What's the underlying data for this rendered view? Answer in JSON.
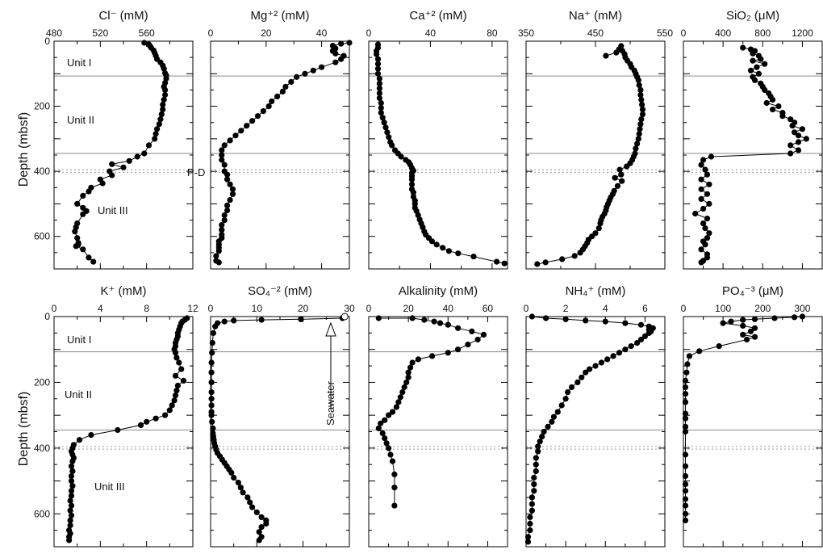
{
  "ylabel": "Depth (mbsf)",
  "depth_ylim": [
    0,
    700
  ],
  "depth_ticks": [
    0,
    200,
    400,
    600
  ],
  "boundaries": {
    "solid": [
      107,
      345
    ],
    "dotted": [
      395,
      403
    ]
  },
  "annotations": {
    "unit_i": "Unit I",
    "unit_ii": "Unit II",
    "unit_iii": "Unit III",
    "pd": "P-D",
    "seawater": "Seawater"
  },
  "chart_data": [
    {
      "id": "cl",
      "type": "scatter",
      "title": "Cl⁻ (mM)",
      "xlim": [
        480,
        600
      ],
      "xticks": [
        480,
        520,
        560
      ],
      "ylim": [
        0,
        700
      ],
      "x": [
        558,
        562,
        563,
        564,
        566,
        567,
        568,
        569,
        572,
        574,
        575,
        576,
        577,
        577,
        576,
        575,
        576,
        576,
        575,
        574,
        574,
        573,
        572,
        571,
        569,
        568,
        567,
        562,
        558,
        552,
        545,
        530,
        540,
        528,
        530,
        520,
        522,
        512,
        510,
        505,
        500,
        505,
        508,
        505,
        500,
        499,
        498,
        500,
        501,
        501,
        499,
        505,
        510,
        514
      ],
      "y": [
        5,
        10,
        15,
        20,
        28,
        36,
        45,
        55,
        65,
        75,
        85,
        98,
        105,
        115,
        128,
        140,
        150,
        165,
        180,
        195,
        210,
        225,
        240,
        255,
        270,
        285,
        300,
        320,
        345,
        355,
        368,
        378,
        388,
        400,
        412,
        425,
        437,
        450,
        462,
        475,
        500,
        512,
        522,
        532,
        560,
        572,
        585,
        605,
        620,
        625,
        630,
        640,
        665,
        678
      ]
    },
    {
      "id": "mg",
      "type": "scatter",
      "title": "Mg⁺² (mM)",
      "xlim": [
        0,
        50
      ],
      "xticks": [
        0,
        20,
        40
      ],
      "ylim": [
        0,
        700
      ],
      "x": [
        50,
        47,
        44,
        45,
        44,
        45,
        48,
        47,
        45,
        40,
        37,
        34,
        31,
        29,
        27,
        26,
        24,
        22,
        21,
        19,
        17,
        15,
        13,
        11,
        9,
        7,
        5,
        4,
        4,
        4,
        5,
        5,
        6,
        6,
        7,
        8,
        8,
        7,
        6,
        6,
        5,
        5,
        4,
        4,
        4,
        4,
        3,
        3,
        3,
        3,
        2,
        2,
        3
      ],
      "y": [
        5,
        8,
        14,
        22,
        30,
        38,
        45,
        55,
        65,
        80,
        90,
        100,
        110,
        125,
        140,
        155,
        170,
        185,
        200,
        215,
        230,
        245,
        260,
        275,
        290,
        305,
        320,
        335,
        350,
        365,
        380,
        400,
        410,
        425,
        440,
        455,
        470,
        488,
        505,
        520,
        535,
        550,
        565,
        580,
        595,
        605,
        615,
        625,
        635,
        645,
        660,
        675,
        680
      ]
    },
    {
      "id": "ca",
      "type": "scatter",
      "title": "Ca⁺² (mM)",
      "xlim": [
        0,
        90
      ],
      "xticks": [
        0,
        40,
        80
      ],
      "ylim": [
        0,
        700
      ],
      "x": [
        6,
        6,
        5,
        5,
        6,
        6,
        6,
        6,
        7,
        7,
        7,
        7,
        7,
        8,
        8,
        8,
        9,
        10,
        11,
        12,
        13,
        14,
        15,
        17,
        19,
        21,
        24,
        26,
        27,
        28,
        29,
        28,
        28,
        28,
        28,
        28,
        29,
        29,
        30,
        30,
        30,
        31,
        32,
        33,
        34,
        35,
        36,
        37,
        39,
        41,
        44,
        48,
        52,
        58,
        68,
        83,
        88
      ],
      "y": [
        10,
        20,
        30,
        40,
        55,
        70,
        85,
        100,
        115,
        130,
        145,
        160,
        175,
        190,
        205,
        220,
        235,
        250,
        265,
        280,
        295,
        310,
        320,
        335,
        345,
        355,
        365,
        372,
        380,
        390,
        398,
        405,
        415,
        425,
        440,
        455,
        465,
        478,
        490,
        500,
        512,
        522,
        535,
        548,
        560,
        572,
        585,
        595,
        605,
        615,
        625,
        635,
        645,
        652,
        662,
        678,
        683
      ]
    },
    {
      "id": "na",
      "type": "scatter",
      "title": "Na⁺ (mM)",
      "xlim": [
        350,
        550
      ],
      "xticks": [
        350,
        450,
        550
      ],
      "ylim": [
        0,
        700
      ],
      "x": [
        465,
        480,
        484,
        487,
        489,
        492,
        493,
        496,
        500,
        502,
        506,
        508,
        510,
        512,
        513,
        515,
        515,
        516,
        517,
        518,
        518,
        516,
        515,
        514,
        513,
        512,
        510,
        508,
        507,
        505,
        503,
        500,
        495,
        485,
        487,
        478,
        488,
        482,
        477,
        475,
        472,
        470,
        468,
        466,
        465,
        463,
        460,
        458,
        457,
        455,
        450,
        445,
        440,
        438,
        435,
        432,
        428,
        420,
        402,
        378,
        366
      ],
      "y": [
        45,
        35,
        25,
        15,
        30,
        40,
        50,
        60,
        70,
        80,
        90,
        100,
        110,
        120,
        135,
        150,
        165,
        180,
        195,
        210,
        225,
        240,
        255,
        270,
        285,
        300,
        315,
        330,
        345,
        355,
        365,
        375,
        385,
        395,
        410,
        420,
        430,
        445,
        460,
        470,
        480,
        490,
        500,
        510,
        520,
        530,
        540,
        550,
        560,
        575,
        590,
        600,
        610,
        620,
        630,
        640,
        650,
        660,
        670,
        680,
        685
      ]
    },
    {
      "id": "sio2",
      "type": "scatter",
      "title": "SiO₂ (μM)",
      "xlim": [
        0,
        1400
      ],
      "xticks": [
        0,
        400,
        800,
        1200
      ],
      "ylim": [
        0,
        700
      ],
      "x": [
        600,
        680,
        720,
        700,
        760,
        780,
        700,
        820,
        740,
        680,
        760,
        700,
        720,
        780,
        800,
        820,
        860,
        880,
        900,
        840,
        960,
        900,
        1000,
        1000,
        1080,
        1120,
        1100,
        1200,
        1120,
        1160,
        1240,
        1160,
        1080,
        1160,
        1080,
        280,
        200,
        180,
        220,
        240,
        180,
        260,
        180,
        240,
        180,
        260,
        200,
        120,
        240,
        200,
        220,
        260,
        240,
        200,
        220,
        180,
        240,
        240,
        200,
        180
      ],
      "y": [
        20,
        25,
        30,
        38,
        45,
        55,
        60,
        70,
        80,
        90,
        100,
        110,
        120,
        130,
        140,
        150,
        160,
        170,
        180,
        190,
        200,
        210,
        220,
        230,
        240,
        250,
        260,
        270,
        280,
        290,
        300,
        310,
        320,
        335,
        345,
        355,
        365,
        380,
        395,
        410,
        425,
        440,
        455,
        470,
        485,
        500,
        515,
        530,
        545,
        560,
        575,
        590,
        605,
        615,
        625,
        640,
        655,
        665,
        675,
        680
      ]
    },
    {
      "id": "k",
      "type": "scatter",
      "title": "K⁺ (mM)",
      "xlim": [
        0,
        12
      ],
      "xticks": [
        0,
        4,
        8,
        12
      ],
      "ylim": [
        0,
        700
      ],
      "x": [
        11.5,
        11.3,
        11.1,
        11.0,
        10.9,
        10.8,
        10.7,
        10.7,
        10.6,
        10.5,
        10.5,
        10.4,
        10.5,
        10.6,
        10.8,
        11.0,
        10.5,
        11.2,
        10.7,
        10.6,
        10.5,
        10.4,
        10.2,
        10.0,
        9.6,
        8.8,
        8.0,
        7.5,
        5.5,
        3.2,
        2.2,
        1.7,
        1.6,
        1.5,
        1.6,
        1.7,
        1.6,
        1.5,
        1.6,
        1.5,
        1.5,
        1.6,
        1.5,
        1.5,
        1.4,
        1.5,
        1.4,
        1.5,
        1.4,
        1.4,
        1.3,
        1.4,
        1.3,
        1.3
      ],
      "y": [
        5,
        10,
        15,
        20,
        30,
        40,
        50,
        60,
        70,
        80,
        90,
        100,
        110,
        125,
        140,
        160,
        180,
        195,
        210,
        225,
        240,
        255,
        270,
        285,
        300,
        310,
        320,
        330,
        345,
        360,
        375,
        390,
        400,
        410,
        420,
        430,
        440,
        455,
        470,
        485,
        500,
        515,
        530,
        545,
        560,
        575,
        590,
        605,
        620,
        635,
        650,
        660,
        670,
        680
      ]
    },
    {
      "id": "so4",
      "type": "scatter",
      "title": "SO₄⁻² (mM)",
      "xlim": [
        0,
        30
      ],
      "xticks": [
        0,
        10,
        20,
        30
      ],
      "ylim": [
        0,
        700
      ],
      "x": [
        28.5,
        19.5,
        11,
        5,
        3,
        1.5,
        1,
        0.6,
        0.4,
        0.3,
        0.2,
        0.2,
        0.2,
        0.2,
        0.2,
        0.2,
        0.2,
        0.2,
        0.3,
        0.5,
        0.5,
        0.6,
        0.7,
        0.8,
        1.0,
        1.2,
        1.5,
        2,
        2.5,
        3,
        3.5,
        4,
        4.5,
        5,
        6,
        6.5,
        7,
        8,
        8.5,
        9,
        10,
        11,
        12,
        12,
        11,
        10.5,
        11,
        10.5
      ],
      "y": [
        5,
        8,
        10,
        12,
        15,
        20,
        30,
        50,
        80,
        110,
        140,
        170,
        200,
        230,
        250,
        270,
        290,
        300,
        320,
        340,
        355,
        365,
        375,
        385,
        395,
        405,
        415,
        425,
        435,
        445,
        455,
        465,
        475,
        490,
        505,
        520,
        535,
        550,
        565,
        580,
        595,
        610,
        620,
        630,
        640,
        655,
        670,
        680
      ]
    },
    {
      "id": "alk",
      "type": "scatter",
      "title": "Alkalinity (mM)",
      "xlim": [
        0,
        70
      ],
      "xticks": [
        0,
        20,
        40,
        60
      ],
      "ylim": [
        0,
        700
      ],
      "x": [
        5,
        22,
        28,
        33,
        36,
        40,
        45,
        52,
        58,
        55,
        50,
        45,
        40,
        32,
        25,
        22,
        21,
        20,
        20,
        19,
        18,
        17,
        16,
        15,
        14,
        12,
        10,
        8,
        6,
        5,
        7,
        8,
        9,
        10,
        11,
        12,
        13,
        13,
        13
      ],
      "y": [
        5,
        5,
        10,
        15,
        20,
        25,
        35,
        45,
        55,
        70,
        85,
        100,
        110,
        120,
        130,
        140,
        155,
        170,
        185,
        200,
        215,
        230,
        245,
        260,
        275,
        290,
        300,
        315,
        325,
        340,
        355,
        370,
        385,
        400,
        420,
        440,
        480,
        520,
        575
      ]
    },
    {
      "id": "nh4",
      "type": "scatter",
      "title": "NH₄⁺ (mM)",
      "xlim": [
        0,
        7
      ],
      "xticks": [
        0,
        2,
        4,
        6
      ],
      "ylim": [
        0,
        700
      ],
      "x": [
        0.3,
        1.0,
        2.0,
        3.0,
        4.0,
        5.0,
        5.8,
        6.2,
        6.4,
        6.2,
        6.3,
        6.2,
        6.0,
        5.8,
        5.6,
        5.3,
        5.0,
        4.7,
        4.4,
        4.1,
        3.8,
        3.5,
        3.2,
        3.0,
        2.8,
        2.6,
        2.3,
        2.1,
        2.0,
        1.8,
        1.6,
        1.4,
        1.3,
        1.1,
        0.9,
        0.8,
        0.7,
        0.6,
        0.6,
        0.5,
        0.5,
        0.5,
        0.4,
        0.4,
        0.4,
        0.3,
        0.3,
        0.3,
        0.2,
        0.2,
        0.2,
        0.1,
        0.1
      ],
      "y": [
        0,
        5,
        8,
        12,
        15,
        20,
        25,
        30,
        35,
        40,
        45,
        50,
        60,
        70,
        80,
        90,
        100,
        110,
        120,
        130,
        140,
        150,
        160,
        170,
        185,
        200,
        215,
        230,
        250,
        270,
        290,
        305,
        320,
        335,
        350,
        365,
        380,
        395,
        410,
        430,
        450,
        470,
        490,
        510,
        530,
        550,
        570,
        590,
        610,
        630,
        650,
        670,
        685
      ]
    },
    {
      "id": "po4",
      "type": "scatter",
      "title": "PO₄⁻³ (μM)",
      "xlim": [
        0,
        350
      ],
      "xticks": [
        0,
        100,
        200,
        300
      ],
      "ylim": [
        0,
        700
      ],
      "x": [
        300,
        280,
        230,
        180,
        150,
        120,
        100,
        150,
        180,
        170,
        150,
        180,
        160,
        90,
        40,
        15,
        10,
        8,
        5,
        5,
        5,
        5,
        5,
        5,
        5,
        5,
        5,
        5,
        5,
        5,
        5,
        5,
        5,
        5,
        5
      ],
      "y": [
        0,
        2,
        5,
        8,
        10,
        15,
        20,
        28,
        35,
        45,
        55,
        62,
        70,
        90,
        105,
        120,
        145,
        170,
        195,
        215,
        235,
        260,
        295,
        310,
        335,
        350,
        420,
        455,
        485,
        510,
        530,
        555,
        575,
        600,
        620
      ]
    }
  ]
}
